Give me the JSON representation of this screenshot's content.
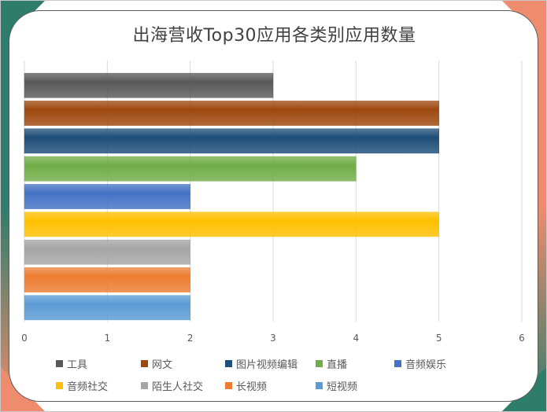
{
  "chart_data": {
    "type": "bar",
    "orientation": "horizontal",
    "title": "出海营收Top30应用各类别应用数量",
    "categories": [
      "工具",
      "网文",
      "图片视频编辑",
      "直播",
      "音频娱乐",
      "音频社交",
      "陌生人社交",
      "长视频",
      "短视频"
    ],
    "values": [
      3,
      5,
      5,
      4,
      2,
      5,
      2,
      2,
      2
    ],
    "colors": [
      "#595959",
      "#9e480e",
      "#1f4e79",
      "#70ad47",
      "#4472c4",
      "#ffc000",
      "#a5a5a5",
      "#ed7d31",
      "#5b9bd5"
    ],
    "xlim": [
      0,
      6
    ],
    "xticks": [
      "0",
      "1",
      "2",
      "3",
      "4",
      "5",
      "6"
    ],
    "grid": true,
    "legend_position": "bottom"
  },
  "frame": {
    "accent_green": "#2e7d6b",
    "accent_orange": "#ef8c6e"
  }
}
